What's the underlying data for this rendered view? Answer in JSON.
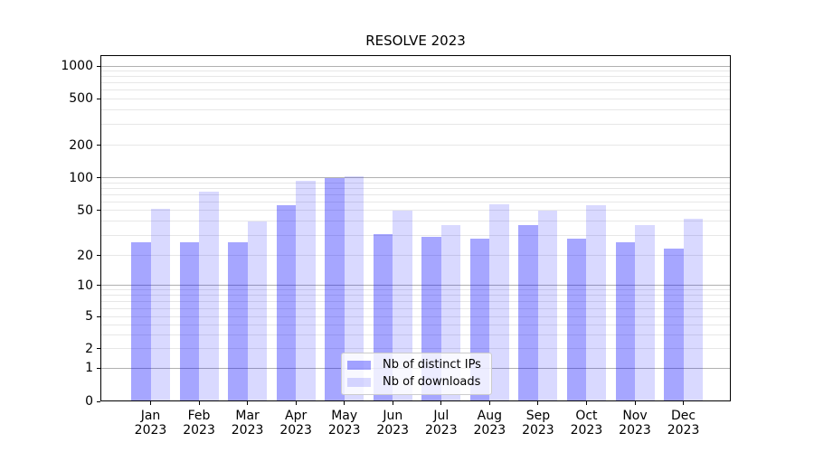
{
  "chart_data": {
    "type": "bar",
    "title": "RESOLVE 2023",
    "categories": [
      "Jan 2023",
      "Feb 2023",
      "Mar 2023",
      "Apr 2023",
      "May 2023",
      "Jun 2023",
      "Jul 2023",
      "Aug 2023",
      "Sep 2023",
      "Oct 2023",
      "Nov 2023",
      "Dec 2023"
    ],
    "series": [
      {
        "name": "Nb of distinct IPs",
        "color": "rgba(0,0,255,0.35)",
        "values": [
          26,
          26,
          26,
          56,
          100,
          31,
          29,
          28,
          37,
          28,
          26,
          23
        ]
      },
      {
        "name": "Nb of downloads",
        "color": "rgba(0,0,255,0.15)",
        "values": [
          52,
          75,
          40,
          93,
          104,
          50,
          37,
          57,
          50,
          56,
          37,
          42
        ]
      }
    ],
    "xlabel": "",
    "ylabel": "",
    "yscale": "symlog",
    "yticks": [
      0,
      1,
      2,
      5,
      10,
      20,
      50,
      100,
      200,
      500,
      1000
    ],
    "ylim": [
      0,
      1270
    ],
    "grid": "horizontal major and minor log gridlines",
    "legend_position": "lower center",
    "colors": {
      "major_grid": "#b0b0b0",
      "minor_grid": "#e7e7e7",
      "axis": "#000000",
      "bar_ips_on_white": "#a6a6ff",
      "bar_downloads_on_white": "#d9d9ff"
    }
  }
}
